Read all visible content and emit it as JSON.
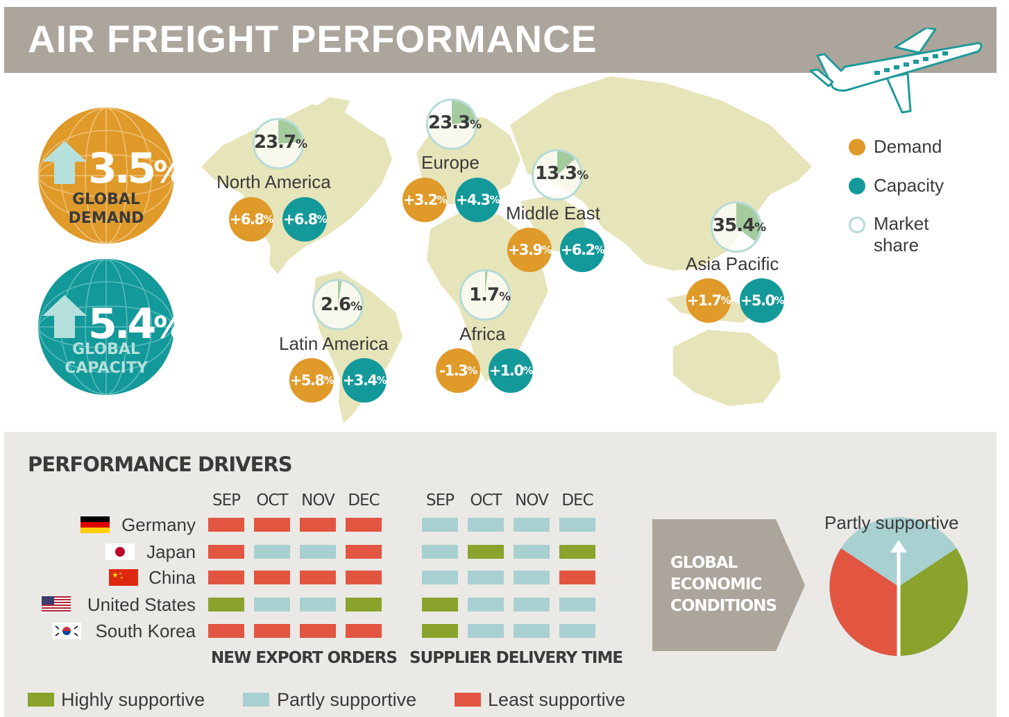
{
  "header": {
    "title": "AIR FREIGHT PERFORMANCE"
  },
  "global": {
    "demand": {
      "value": "3.5",
      "unit": "%",
      "line1": "GLOBAL",
      "line2": "DEMAND"
    },
    "capacity": {
      "value": "5.4",
      "unit": "%",
      "line1": "GLOBAL",
      "line2": "CAPACITY"
    }
  },
  "regions": [
    {
      "name": "North America",
      "market_share": "23.7",
      "share_fraction": 0.237,
      "demand": "+6.8",
      "capacity": "+6.8"
    },
    {
      "name": "Europe",
      "market_share": "23.3",
      "share_fraction": 0.233,
      "demand": "+3.2",
      "capacity": "+4.3"
    },
    {
      "name": "Middle East",
      "market_share": "13.3",
      "share_fraction": 0.133,
      "demand": "+3.9",
      "capacity": "+6.2"
    },
    {
      "name": "Asia Pacific",
      "market_share": "35.4",
      "share_fraction": 0.354,
      "demand": "+1.7",
      "capacity": "+5.0"
    },
    {
      "name": "Latin America",
      "market_share": "2.6",
      "share_fraction": 0.026,
      "demand": "+5.8",
      "capacity": "+3.4"
    },
    {
      "name": "Africa",
      "market_share": "1.7",
      "share_fraction": 0.017,
      "demand": "-1.3",
      "capacity": "+1.0"
    }
  ],
  "pct_symbol": "%",
  "legend": {
    "demand": "Demand",
    "capacity": "Capacity",
    "market_share_1": "Market",
    "market_share_2": "share"
  },
  "drivers": {
    "title": "PERFORMANCE DRIVERS",
    "months": [
      "SEP",
      "OCT",
      "NOV",
      "DEC"
    ],
    "countries": [
      {
        "name": "Germany",
        "flag": "germany",
        "export_orders": [
          "least",
          "least",
          "least",
          "least"
        ],
        "delivery_time": [
          "partly",
          "partly",
          "partly",
          "partly"
        ]
      },
      {
        "name": "Japan",
        "flag": "japan",
        "export_orders": [
          "least",
          "partly",
          "partly",
          "least"
        ],
        "delivery_time": [
          "partly",
          "highly",
          "partly",
          "highly"
        ]
      },
      {
        "name": "China",
        "flag": "china",
        "export_orders": [
          "least",
          "least",
          "least",
          "least"
        ],
        "delivery_time": [
          "partly",
          "partly",
          "partly",
          "least"
        ]
      },
      {
        "name": "United States",
        "flag": "united-states",
        "export_orders": [
          "highly",
          "partly",
          "partly",
          "highly"
        ],
        "delivery_time": [
          "highly",
          "partly",
          "partly",
          "partly"
        ]
      },
      {
        "name": "South Korea",
        "flag": "south-korea",
        "export_orders": [
          "least",
          "least",
          "least",
          "least"
        ],
        "delivery_time": [
          "highly",
          "partly",
          "partly",
          "partly"
        ]
      }
    ],
    "group1_label": "NEW EXPORT ORDERS",
    "group2_label": "SUPPLIER DELIVERY TIME",
    "global_conditions": {
      "line1": "GLOBAL",
      "line2": "ECONOMIC",
      "line3": "CONDITIONS",
      "status": "Partly supportive"
    },
    "legend": {
      "highly": "Highly supportive",
      "partly": "Partly supportive",
      "least": "Least  supportive"
    }
  },
  "colors": {
    "demand": "#df9a2a",
    "capacity": "#14999a",
    "share_ring": "#b7dbd7",
    "share_fill": "#8fbf8a",
    "highly": "#8aa32d",
    "partly": "#a9d0d0",
    "least": "#e25541",
    "header_bg": "#aba59c",
    "map": "#e6e4b9"
  }
}
